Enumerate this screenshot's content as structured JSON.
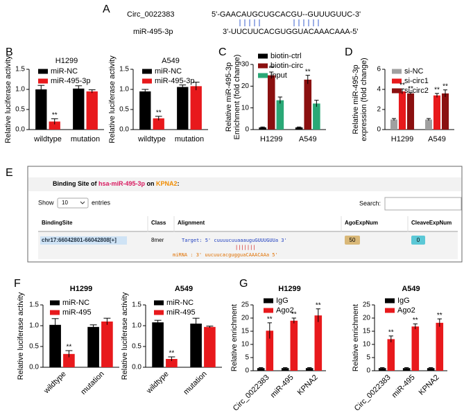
{
  "panel_labels": [
    "A",
    "B",
    "C",
    "D",
    "E",
    "F",
    "G"
  ],
  "alignment": {
    "circ_name": "Circ_0022383",
    "circ_seq": "5'-GAACAUGCUGCACGU--GUUUGUUC-3'",
    "mir_name": "miR-495-3p",
    "mir_seq": "3'-UUCUUCACGUGGUACAAACAAA-5'"
  },
  "table": {
    "title": [
      "Binding Site of ",
      "hsa-miR-495-3p",
      " on ",
      "KPNA2",
      ":"
    ],
    "show": "Show",
    "page_size": "10",
    "entries": "entries",
    "search": "Search:",
    "headers": [
      "BindingSite",
      "Class",
      "Alignment",
      "AgoExpNum",
      "CleaveExpNum"
    ],
    "row": {
      "site": "chr17:66042801-66042808[+]",
      "class": "8mer",
      "alignment": [
        "Target: 5' cuuuucuuaaauguGUUUGUUa 3'",
        "|||||||",
        "miRNA  : 3' uucuucacgugguaCAAACAAa 5'"
      ],
      "ago": "50",
      "cleave": "0"
    }
  },
  "chart_data": [
    {
      "type": "bar",
      "title": "H1299",
      "ylabel": [
        "Relative luciferase activity"
      ],
      "categories": [
        "wildtype",
        "mutation"
      ],
      "series": [
        {
          "name": "miR-NC",
          "color": "#000000",
          "values": [
            1.0,
            1.02
          ],
          "errors": [
            0.1,
            0.07
          ],
          "annotations": [
            null,
            null
          ]
        },
        {
          "name": "miR-495-3p",
          "color": "#e8191c",
          "values": [
            0.2,
            0.95
          ],
          "errors": [
            0.07,
            0.04
          ],
          "annotations": [
            "**",
            null
          ]
        }
      ],
      "ylim": [
        0,
        1.5
      ],
      "yticks": [
        {
          "value": 0,
          "label": "0.0"
        },
        {
          "value": 0.5,
          "label": "0.5"
        },
        {
          "value": 1,
          "label": "1.0"
        },
        {
          "value": 1.5,
          "label": "1.5"
        }
      ]
    },
    {
      "type": "bar",
      "title": "A549",
      "ylabel": [
        "Relative luciferase activity"
      ],
      "categories": [
        "wildtype",
        "mutation"
      ],
      "series": [
        {
          "name": "miR-NC",
          "color": "#000000",
          "values": [
            0.95,
            1.06
          ],
          "errors": [
            0.05,
            0.05
          ],
          "annotations": [
            null,
            null
          ]
        },
        {
          "name": "miR-495-3p",
          "color": "#e8191c",
          "values": [
            0.28,
            1.08
          ],
          "errors": [
            0.05,
            0.1
          ],
          "annotations": [
            "**",
            null
          ]
        }
      ],
      "ylim": [
        0,
        1.5
      ],
      "yticks": [
        {
          "value": 0,
          "label": "0.0"
        },
        {
          "value": 0.5,
          "label": "0.5"
        },
        {
          "value": 1,
          "label": "1.0"
        },
        {
          "value": 1.5,
          "label": "1.5"
        }
      ]
    },
    {
      "type": "bar",
      "ylabel": [
        "Relative miR-495-3p",
        "Enrichment (fold change)"
      ],
      "categories": [
        "H1299",
        "A549"
      ],
      "series": [
        {
          "name": "biotin-ctrl",
          "color": "#000000",
          "values": [
            1,
            1
          ],
          "errors": [
            0.2,
            0.2
          ],
          "annotations": [
            null,
            null
          ]
        },
        {
          "name": "biotin-circ",
          "color": "#8b1010",
          "values": [
            25,
            23
          ],
          "errors": [
            1.5,
            2
          ],
          "annotations": [
            "**",
            "**"
          ]
        },
        {
          "name": "input",
          "color": "#2aa876",
          "values": [
            13.5,
            12
          ],
          "errors": [
            1.5,
            1.5
          ],
          "annotations": [
            null,
            null
          ]
        }
      ],
      "ylim": [
        0,
        30
      ],
      "yticks": [
        0,
        10,
        20,
        30
      ]
    },
    {
      "type": "bar",
      "ylabel": [
        "Relative miR-495-3p",
        "expression (fold change)"
      ],
      "categories": [
        "H1299",
        "A549"
      ],
      "series": [
        {
          "name": "si-NC",
          "color": "#a0a0a0",
          "values": [
            1.0,
            1.0
          ],
          "errors": [
            0.1,
            0.1
          ],
          "annotations": [
            null,
            null
          ]
        },
        {
          "name": "si-circ1",
          "color": "#e8191c",
          "values": [
            3.8,
            3.4
          ],
          "errors": [
            0.25,
            0.2
          ],
          "annotations": [
            "**",
            "**"
          ]
        },
        {
          "name": "si-circ2",
          "color": "#8b1010",
          "values": [
            3.6,
            3.6
          ],
          "errors": [
            0.1,
            0.35
          ],
          "annotations": [
            "**",
            "**"
          ]
        }
      ],
      "ylim": [
        0,
        6
      ],
      "yticks": [
        0,
        2,
        4,
        6
      ]
    },
    {
      "type": "bar",
      "title": "H1299",
      "ylabel": [
        "Relative luciferase activity"
      ],
      "categories": [
        "wildtype",
        "mutation"
      ],
      "series": [
        {
          "name": "miR-NC",
          "color": "#000000",
          "values": [
            1.02,
            0.97
          ],
          "errors": [
            0.15,
            0.05
          ],
          "annotations": [
            null,
            null
          ]
        },
        {
          "name": "miR-495",
          "color": "#e8191c",
          "values": [
            0.32,
            1.1
          ],
          "errors": [
            0.08,
            0.08
          ],
          "annotations": [
            "**",
            null
          ]
        }
      ],
      "ylim": [
        0,
        1.5
      ],
      "yticks": [
        {
          "value": 0,
          "label": "0.0"
        },
        {
          "value": 0.5,
          "label": "0.5"
        },
        {
          "value": 1,
          "label": "1.0"
        },
        {
          "value": 1.5,
          "label": "1.5"
        }
      ]
    },
    {
      "type": "bar",
      "title": "A549",
      "ylabel": [
        "Relative luciferase activity"
      ],
      "categories": [
        "wildtype",
        "mutation"
      ],
      "series": [
        {
          "name": "miR-NC",
          "color": "#000000",
          "values": [
            1.08,
            1.05
          ],
          "errors": [
            0.05,
            0.13
          ],
          "annotations": [
            null,
            null
          ]
        },
        {
          "name": "miR-495",
          "color": "#e8191c",
          "values": [
            0.2,
            0.97
          ],
          "errors": [
            0.05,
            0.02
          ],
          "annotations": [
            "**",
            null
          ]
        }
      ],
      "ylim": [
        0,
        1.5
      ],
      "yticks": [
        {
          "value": 0,
          "label": "0.0"
        },
        {
          "value": 0.5,
          "label": "0.5"
        },
        {
          "value": 1,
          "label": "1.0"
        },
        {
          "value": 1.5,
          "label": "1.5"
        }
      ]
    },
    {
      "type": "bar",
      "title": "H1299",
      "ylabel": [
        "Relative enrichment"
      ],
      "categories": [
        "Circ_0022383",
        "miR-495",
        "KPNA2"
      ],
      "series": [
        {
          "name": "IgG",
          "color": "#000000",
          "values": [
            1,
            1,
            1
          ],
          "errors": [
            0.2,
            0.2,
            0.2
          ],
          "annotations": [
            null,
            null,
            null
          ]
        },
        {
          "name": "Ago2",
          "color": "#e8191c",
          "values": [
            15.2,
            19,
            21
          ],
          "errors": [
            3,
            1,
            2.5
          ],
          "annotations": [
            "**",
            "**",
            "**"
          ]
        }
      ],
      "ylim": [
        0,
        25
      ],
      "yticks": [
        0,
        5,
        10,
        15,
        20,
        25
      ]
    },
    {
      "type": "bar",
      "title": "A549",
      "ylabel": [
        "Relative enrichment"
      ],
      "categories": [
        "Circ_0022383",
        "miR-495",
        "KPNA2"
      ],
      "series": [
        {
          "name": "IgG",
          "color": "#000000",
          "values": [
            1,
            1,
            1
          ],
          "errors": [
            0.2,
            0.2,
            0.2
          ],
          "annotations": [
            null,
            null,
            null
          ]
        },
        {
          "name": "Ago2",
          "color": "#e8191c",
          "values": [
            12,
            16.8,
            18.2
          ],
          "errors": [
            1.2,
            1,
            1.5
          ],
          "annotations": [
            "**",
            "**",
            "**"
          ]
        }
      ],
      "ylim": [
        0,
        25
      ],
      "yticks": [
        0,
        5,
        10,
        15,
        20,
        25
      ]
    }
  ]
}
